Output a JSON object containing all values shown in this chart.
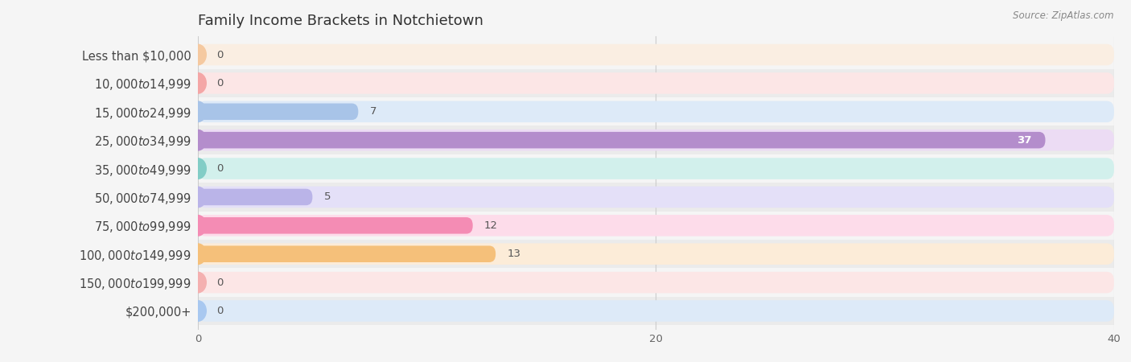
{
  "title": "Family Income Brackets in Notchietown",
  "source": "Source: ZipAtlas.com",
  "categories": [
    "Less than $10,000",
    "$10,000 to $14,999",
    "$15,000 to $24,999",
    "$25,000 to $34,999",
    "$35,000 to $49,999",
    "$50,000 to $74,999",
    "$75,000 to $99,999",
    "$100,000 to $149,999",
    "$150,000 to $199,999",
    "$200,000+"
  ],
  "values": [
    0,
    0,
    7,
    37,
    0,
    5,
    12,
    13,
    0,
    0
  ],
  "bar_colors": [
    "#f5c9a0",
    "#f4a6a6",
    "#a8c4e8",
    "#b48dcc",
    "#82cdc6",
    "#bab4e8",
    "#f48cb4",
    "#f5c07a",
    "#f4b0b0",
    "#a8c8f0"
  ],
  "bar_bg_colors": [
    "#faeee2",
    "#fce6e6",
    "#ddeaf8",
    "#ecdcf4",
    "#d2f0ec",
    "#e4e0f8",
    "#fddcea",
    "#fcecd8",
    "#fce6e6",
    "#ddeaf8"
  ],
  "xlim": [
    0,
    40
  ],
  "xticks": [
    0,
    20,
    40
  ],
  "bg_color": "#f5f5f5",
  "row_bg_even": "#ebebeb",
  "row_bg_odd": "#f5f5f5",
  "title_fontsize": 13,
  "label_fontsize": 10.5,
  "value_fontsize": 9.5
}
